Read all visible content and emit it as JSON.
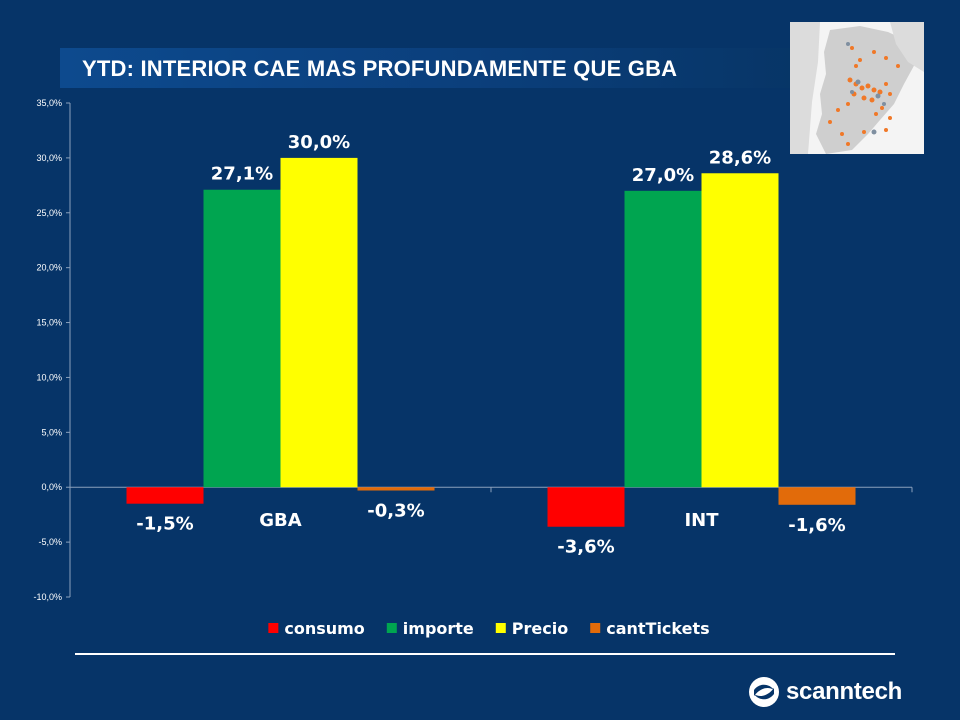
{
  "slide": {
    "title": "YTD: INTERIOR CAE MAS PROFUNDAMENTE QUE GBA",
    "brand": "scanntech"
  },
  "map": {
    "icon": "argentina-map-icon",
    "colors": {
      "land": "#cfcfcf",
      "points_orange": "#f07828",
      "points_gray": "#7f8fa0"
    }
  },
  "chart_data": {
    "type": "bar",
    "categories": [
      "GBA",
      "INT"
    ],
    "series": [
      {
        "name": "consumo",
        "values": [
          -1.5,
          -3.6
        ],
        "labels": [
          "-1,5%",
          "-3,6%"
        ],
        "color": "#ff0000"
      },
      {
        "name": "importe",
        "values": [
          27.1,
          27.0
        ],
        "labels": [
          "27,1%",
          "27,0%"
        ],
        "color": "#00a550"
      },
      {
        "name": "Precio",
        "values": [
          30.0,
          28.6
        ],
        "labels": [
          "30,0%",
          "28,6%"
        ],
        "color": "#ffff00"
      },
      {
        "name": "cantTickets",
        "values": [
          -0.3,
          -1.6
        ],
        "labels": [
          "-0,3%",
          "-1,6%"
        ],
        "color": "#e26b0a"
      }
    ],
    "y_ticks": [
      35,
      30,
      25,
      20,
      15,
      10,
      5,
      0,
      -5,
      -10
    ],
    "y_tick_labels": [
      "35,0%",
      "30,0%",
      "25,0%",
      "20,0%",
      "15,0%",
      "10,0%",
      "5,0%",
      "0,0%",
      "-5,0%",
      "-10,0%"
    ],
    "ylim": [
      -10,
      35
    ],
    "grid": false,
    "legend_position": "bottom",
    "axis_color": "#8aa0bc",
    "label_color": "#ffffff"
  }
}
